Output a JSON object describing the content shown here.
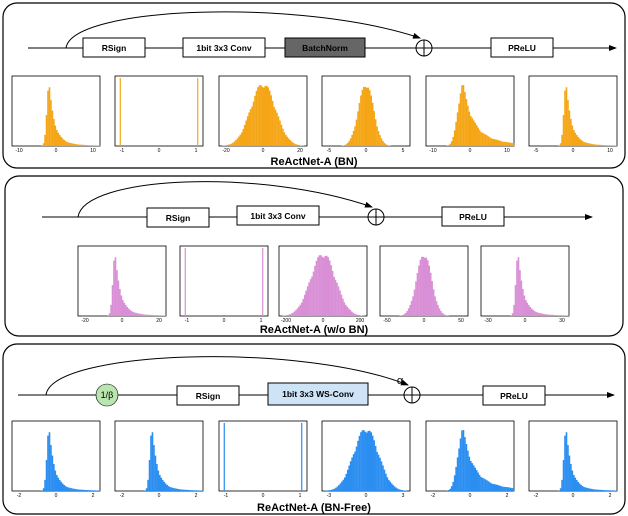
{
  "colors": {
    "bn": "#f5a617",
    "wobn": "#d98fd6",
    "bnfree": "#2b8ef0",
    "batchnorm_fill": "#666666",
    "wsconv_fill": "#cfe3f7",
    "scale_fill": "#b9e6ae"
  },
  "panels": [
    {
      "id": "bn",
      "caption": "ReActNet-A (BN)",
      "color_key": "bn",
      "blocks": [
        {
          "label": "RSign",
          "style": "plain"
        },
        {
          "label": "1bit 3x3 Conv",
          "style": "plain"
        },
        {
          "label": "BatchNorm",
          "style": "dark"
        },
        {
          "label": "PReLU",
          "style": "plain"
        }
      ],
      "histograms": [
        {
          "shape": "right-skew",
          "ticks": [
            "-10",
            "0",
            "10"
          ]
        },
        {
          "shape": "binary",
          "ticks": [
            "-1",
            "0",
            "1"
          ]
        },
        {
          "shape": "normal-wide",
          "ticks": [
            "-20",
            "0",
            "20"
          ]
        },
        {
          "shape": "normal",
          "ticks": [
            "-5",
            "0",
            "5"
          ]
        },
        {
          "shape": "right-skew-soft",
          "ticks": [
            "-10",
            "0",
            "10"
          ]
        },
        {
          "shape": "right-skew",
          "ticks": [
            "-5",
            "0",
            "10"
          ]
        }
      ]
    },
    {
      "id": "wobn",
      "caption": "ReActNet-A (w/o BN)",
      "color_key": "wobn",
      "blocks": [
        {
          "label": "RSign",
          "style": "plain"
        },
        {
          "label": "1bit 3x3 Conv",
          "style": "plain"
        },
        {
          "label": "PReLU",
          "style": "plain"
        }
      ],
      "histograms": [
        {
          "shape": "right-skew",
          "ticks": [
            "-20",
            "0",
            "20"
          ]
        },
        {
          "shape": "binary",
          "ticks": [
            "-1",
            "0",
            "1"
          ]
        },
        {
          "shape": "normal-wide",
          "ticks": [
            "-200",
            "0",
            "200"
          ]
        },
        {
          "shape": "normal",
          "ticks": [
            "-50",
            "0",
            "50"
          ]
        },
        {
          "shape": "right-skew",
          "ticks": [
            "-30",
            "0",
            "30"
          ]
        }
      ]
    },
    {
      "id": "bnfree",
      "caption": "ReActNet-A (BN-Free)",
      "color_key": "bnfree",
      "scale_label": "1/β",
      "alpha_label": "α",
      "blocks": [
        {
          "label": "RSign",
          "style": "plain"
        },
        {
          "label": "1bit 3x3 WS-Conv",
          "style": "light"
        },
        {
          "label": "PReLU",
          "style": "plain"
        }
      ],
      "histograms": [
        {
          "shape": "right-skew",
          "ticks": [
            "-2",
            "0",
            "2"
          ]
        },
        {
          "shape": "right-skew",
          "ticks": [
            "-2",
            "0",
            "2"
          ]
        },
        {
          "shape": "binary",
          "ticks": [
            "-1",
            "0",
            "1"
          ]
        },
        {
          "shape": "normal-wide",
          "ticks": [
            "-3",
            "0",
            "3"
          ]
        },
        {
          "shape": "right-skew-soft",
          "ticks": [
            "-2",
            "0",
            "2"
          ]
        },
        {
          "shape": "right-skew",
          "ticks": [
            "-2",
            "0",
            "2"
          ]
        }
      ]
    }
  ]
}
